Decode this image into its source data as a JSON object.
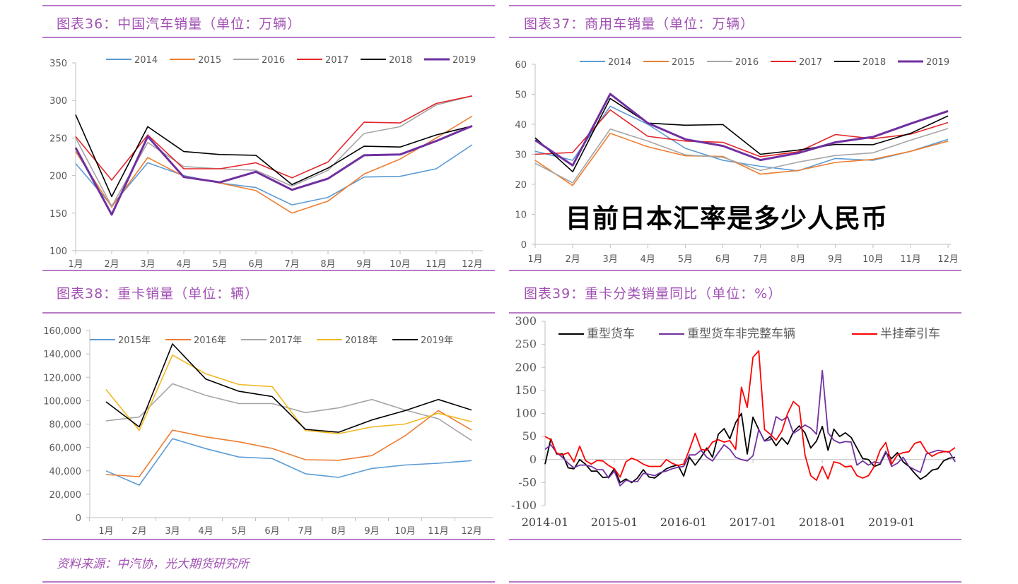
{
  "overlay_text": "目前日本汇率是多少人民币",
  "source_note": "资料来源：中汽协，光大期货研究所",
  "colors": {
    "rule": "#B77BC6",
    "title": "#A14FB3"
  },
  "chart_data": [
    {
      "id": "c36",
      "type": "line",
      "title": "图表36：中国汽车销量（单位：万辆）",
      "categories": [
        "1月",
        "2月",
        "3月",
        "4月",
        "5月",
        "6月",
        "7月",
        "8月",
        "9月",
        "10月",
        "11月",
        "12月"
      ],
      "ylim": [
        100,
        350
      ],
      "yticks": [
        100,
        150,
        200,
        250,
        300,
        350
      ],
      "legend": "top",
      "grid": false,
      "series": [
        {
          "name": "2014",
          "color": "#5B9BD5",
          "values": [
            216,
            160,
            217,
            200,
            190,
            184,
            161,
            171,
            198,
            199,
            209,
            241
          ]
        },
        {
          "name": "2015",
          "color": "#ED7D31",
          "values": [
            232,
            158,
            224,
            199,
            190,
            180,
            150,
            166,
            202,
            222,
            250,
            279
          ]
        },
        {
          "name": "2016",
          "color": "#A5A5A5",
          "values": [
            250,
            159,
            244,
            212,
            209,
            207,
            186,
            207,
            256,
            265,
            294,
            306
          ]
        },
        {
          "name": "2017",
          "color": "#E3262B",
          "values": [
            252,
            194,
            254,
            209,
            209,
            217,
            197,
            218,
            271,
            270,
            296,
            306
          ]
        },
        {
          "name": "2018",
          "color": "#000000",
          "values": [
            281,
            172,
            265,
            232,
            228,
            227,
            188,
            210,
            239,
            238,
            254,
            266
          ]
        },
        {
          "name": "2019",
          "color": "#7030A0",
          "values": [
            237,
            148,
            252,
            198,
            191,
            205,
            181,
            196,
            227,
            228,
            246,
            266
          ]
        }
      ]
    },
    {
      "id": "c37",
      "type": "line",
      "title": "图表37：商用车销量（单位：万辆）",
      "categories": [
        "1月",
        "2月",
        "3月",
        "4月",
        "5月",
        "6月",
        "7月",
        "8月",
        "9月",
        "10月",
        "11月",
        "12月"
      ],
      "ylim": [
        0,
        60
      ],
      "yticks": [
        0,
        10,
        20,
        30,
        40,
        50,
        60
      ],
      "legend": "top",
      "grid": false,
      "series": [
        {
          "name": "2014",
          "color": "#5B9BD5",
          "values": [
            31,
            28,
            46,
            40,
            32,
            28,
            26,
            24.5,
            28.6,
            28,
            31,
            35
          ]
        },
        {
          "name": "2015",
          "color": "#ED7D31",
          "values": [
            28,
            19.6,
            37,
            32.5,
            29.5,
            29.3,
            23.4,
            24.6,
            27.3,
            28.3,
            31,
            34.4
          ]
        },
        {
          "name": "2016",
          "color": "#A5A5A5",
          "values": [
            27,
            20.5,
            38.4,
            34.4,
            29.8,
            29,
            24.6,
            27.4,
            29.6,
            30.5,
            34.7,
            38.6
          ]
        },
        {
          "name": "2017",
          "color": "#E3262B",
          "values": [
            30,
            30.6,
            44.8,
            36,
            34.4,
            34,
            29.2,
            30.8,
            36.6,
            35.2,
            36.7,
            40.6
          ]
        },
        {
          "name": "2018",
          "color": "#000000",
          "values": [
            35.5,
            24.2,
            48.6,
            40.4,
            39.7,
            39.9,
            30,
            31.4,
            33.3,
            33.2,
            37,
            42.8
          ]
        },
        {
          "name": "2019",
          "color": "#7030A0",
          "values": [
            34.7,
            26.3,
            50.1,
            40.4,
            35,
            32.8,
            28.1,
            30.4,
            34,
            35.8,
            40.2,
            44.4
          ]
        }
      ]
    },
    {
      "id": "c38",
      "type": "line",
      "title": "图表38：重卡销量（单位：辆）",
      "categories": [
        "1月",
        "2月",
        "3月",
        "4月",
        "5月",
        "6月",
        "7月",
        "8月",
        "9月",
        "10月",
        "11月",
        "12月"
      ],
      "ylim": [
        0,
        160000
      ],
      "yticks": [
        "0",
        "20,000",
        "40,000",
        "60,000",
        "80,000",
        "100,000",
        "120,000",
        "140,000",
        "160,000"
      ],
      "legend": "top",
      "grid": false,
      "series": [
        {
          "name": "2015年",
          "color": "#5B9BD5",
          "values": [
            40000,
            27800,
            67500,
            59000,
            51800,
            50500,
            37500,
            34400,
            42000,
            45000,
            46500,
            48700
          ]
        },
        {
          "name": "2016年",
          "color": "#ED7D31",
          "values": [
            36800,
            35000,
            74800,
            69000,
            64800,
            59200,
            49500,
            49000,
            53000,
            70000,
            91500,
            75000
          ]
        },
        {
          "name": "2017年",
          "color": "#A5A5A5",
          "values": [
            82800,
            86000,
            114500,
            104500,
            97500,
            97500,
            89800,
            93800,
            101000,
            92000,
            84500,
            66000
          ]
        },
        {
          "name": "2018年",
          "color": "#F2B824",
          "values": [
            109500,
            74500,
            139000,
            123000,
            113800,
            112000,
            74500,
            71800,
            77500,
            80000,
            89200,
            82000
          ]
        },
        {
          "name": "2019年",
          "color": "#000000",
          "values": [
            99000,
            77500,
            148500,
            118500,
            108000,
            103500,
            75500,
            73000,
            83500,
            91500,
            101000,
            92000
          ]
        }
      ]
    },
    {
      "id": "c39",
      "type": "line",
      "title": "图表39：重卡分类销量同比（单位：%）",
      "x_start": "2014-01",
      "x_end": "2019-12",
      "xticks": [
        "2014-01",
        "2015-01",
        "2016-01",
        "2017-01",
        "2018-01",
        "2019-01"
      ],
      "ylim": [
        -100,
        300
      ],
      "yticks": [
        -100,
        -50,
        0,
        50,
        100,
        150,
        200,
        250,
        300
      ],
      "legend": "top",
      "grid": false,
      "series": [
        {
          "name": "重型货车",
          "color": "#000000",
          "values": [
            -10,
            45,
            12,
            12,
            -18,
            -20,
            0,
            -10,
            -25,
            -25,
            -39,
            -38,
            -20,
            -50,
            -42,
            -50,
            -40,
            -22,
            -38,
            -40,
            -30,
            -20,
            -15,
            -12,
            -36,
            5,
            -12,
            5,
            25,
            5,
            55,
            67,
            45,
            80,
            100,
            12,
            92,
            65,
            40,
            50,
            30,
            47,
            33,
            60,
            73,
            58,
            25,
            40,
            72,
            20,
            66,
            50,
            58,
            48,
            25,
            2,
            0,
            -15,
            -10,
            15,
            2,
            15,
            -5,
            -15,
            -30,
            -43,
            -35,
            -23,
            -20,
            -3,
            3,
            5
          ]
        },
        {
          "name": "重型货车非完整车辆",
          "color": "#7030A0",
          "values": [
            22,
            32,
            15,
            5,
            -8,
            -18,
            -12,
            -12,
            -15,
            -22,
            -22,
            -40,
            -25,
            -57,
            -45,
            -48,
            -48,
            -30,
            -32,
            -35,
            -28,
            -25,
            -20,
            -17,
            -15,
            10,
            10,
            20,
            5,
            -3,
            15,
            32,
            22,
            5,
            0,
            -3,
            8,
            65,
            40,
            43,
            93,
            85,
            93,
            57,
            65,
            75,
            68,
            55,
            193,
            58,
            42,
            36,
            39,
            38,
            -12,
            -3,
            -12,
            -5,
            -8,
            18,
            -15,
            -8,
            5,
            -15,
            -22,
            -28,
            12,
            16,
            20,
            18,
            16,
            -5
          ]
        },
        {
          "name": "半挂牵引车",
          "color": "#FF0000",
          "values": [
            50,
            43,
            14,
            10,
            15,
            -5,
            29,
            -2,
            -10,
            -2,
            -3,
            -13,
            -20,
            -38,
            -5,
            3,
            -2,
            -10,
            -15,
            -15,
            -15,
            0,
            -8,
            -13,
            -10,
            22,
            57,
            22,
            20,
            38,
            43,
            38,
            41,
            22,
            157,
            113,
            222,
            236,
            65,
            55,
            42,
            62,
            100,
            126,
            115,
            10,
            -35,
            -45,
            -15,
            -42,
            -5,
            -8,
            -16,
            -14,
            -35,
            -40,
            -35,
            -15,
            20,
            37,
            -10,
            10,
            15,
            17,
            35,
            39,
            18,
            7,
            14,
            17,
            17,
            26
          ]
        }
      ]
    }
  ]
}
